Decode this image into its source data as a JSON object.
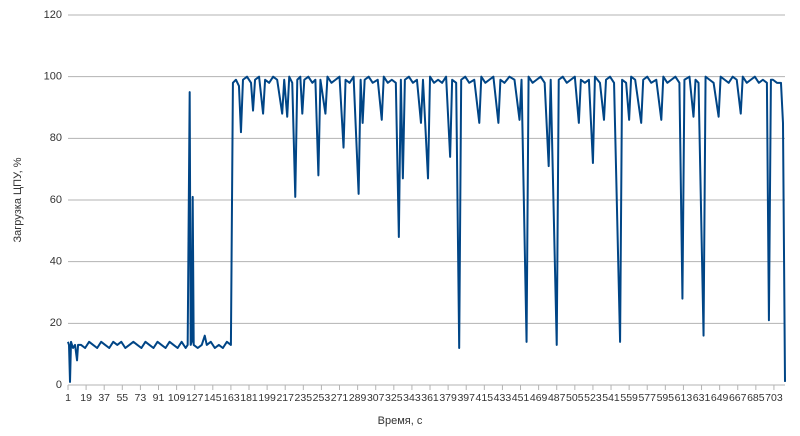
{
  "chart_data": {
    "type": "line",
    "xlabel": "Время, с",
    "ylabel": "Загрузка ЦПУ, %",
    "grid": true,
    "xlim": [
      1,
      714
    ],
    "ylim": [
      0,
      120
    ],
    "yticks": [
      0,
      20,
      40,
      60,
      80,
      100,
      120
    ],
    "xticks": [
      1,
      19,
      37,
      55,
      73,
      91,
      109,
      127,
      145,
      163,
      181,
      199,
      217,
      235,
      253,
      271,
      289,
      307,
      325,
      343,
      361,
      379,
      397,
      415,
      433,
      451,
      469,
      487,
      505,
      523,
      541,
      559,
      577,
      595,
      613,
      631,
      649,
      667,
      685,
      703
    ],
    "series": [
      {
        "color": "#004586",
        "x": [
          1,
          2,
          3,
          4,
          6,
          8,
          10,
          11,
          14,
          18,
          22,
          26,
          30,
          34,
          38,
          42,
          46,
          50,
          54,
          58,
          62,
          66,
          70,
          74,
          78,
          82,
          86,
          90,
          94,
          98,
          102,
          106,
          110,
          114,
          118,
          120,
          122,
          123,
          124,
          125,
          126,
          130,
          134,
          137,
          139,
          143,
          147,
          151,
          155,
          159,
          163,
          165,
          168,
          171,
          173,
          175,
          179,
          183,
          185,
          187,
          191,
          195,
          197,
          201,
          205,
          209,
          214,
          216,
          219,
          221,
          224,
          227,
          229,
          232,
          234,
          236,
          240,
          244,
          247,
          250,
          252,
          257,
          259,
          263,
          267,
          271,
          275,
          277,
          281,
          285,
          290,
          292,
          294,
          296,
          300,
          304,
          309,
          313,
          315,
          319,
          323,
          327,
          330,
          332,
          334,
          336,
          340,
          344,
          348,
          352,
          354,
          359,
          361,
          365,
          369,
          373,
          377,
          381,
          383,
          387,
          390,
          392,
          396,
          400,
          405,
          410,
          412,
          416,
          420,
          424,
          429,
          431,
          435,
          440,
          445,
          450,
          452,
          457,
          459,
          463,
          467,
          471,
          475,
          479,
          481,
          487,
          489,
          493,
          497,
          501,
          505,
          509,
          511,
          515,
          519,
          523,
          525,
          530,
          534,
          536,
          540,
          544,
          550,
          552,
          556,
          559,
          561,
          565,
          571,
          573,
          577,
          581,
          586,
          591,
          593,
          597,
          601,
          605,
          609,
          612,
          614,
          619,
          623,
          625,
          628,
          633,
          635,
          639,
          643,
          648,
          650,
          654,
          658,
          662,
          666,
          670,
          672,
          676,
          680,
          684,
          688,
          692,
          696,
          698,
          700,
          702,
          706,
          710,
          712,
          714
        ],
        "values": [
          14,
          13,
          1,
          14,
          12,
          13,
          8,
          13,
          13,
          12,
          14,
          13,
          12,
          14,
          13,
          12,
          14,
          13,
          14,
          12,
          13,
          14,
          13,
          12,
          14,
          13,
          12,
          14,
          13,
          12,
          14,
          13,
          12,
          14,
          12,
          13,
          95,
          13,
          14,
          61,
          13,
          12,
          13,
          16,
          13,
          14,
          12,
          13,
          12,
          14,
          13,
          98,
          99,
          97,
          82,
          99,
          100,
          98,
          89,
          99,
          100,
          88,
          99,
          98,
          100,
          99,
          88,
          99,
          87,
          100,
          98,
          61,
          99,
          100,
          88,
          99,
          100,
          98,
          99,
          68,
          99,
          88,
          100,
          98,
          99,
          100,
          77,
          99,
          98,
          100,
          62,
          99,
          85,
          99,
          100,
          98,
          99,
          86,
          100,
          98,
          99,
          98,
          48,
          99,
          67,
          99,
          100,
          98,
          99,
          85,
          99,
          67,
          100,
          98,
          99,
          98,
          100,
          74,
          99,
          98,
          12,
          99,
          100,
          98,
          99,
          85,
          100,
          98,
          99,
          100,
          85,
          99,
          98,
          100,
          99,
          86,
          99,
          14,
          100,
          98,
          99,
          100,
          98,
          71,
          99,
          13,
          99,
          100,
          98,
          99,
          100,
          85,
          99,
          98,
          99,
          72,
          100,
          98,
          86,
          99,
          100,
          98,
          14,
          99,
          98,
          86,
          100,
          99,
          85,
          99,
          100,
          98,
          99,
          86,
          100,
          98,
          99,
          100,
          98,
          28,
          99,
          100,
          87,
          99,
          98,
          16,
          100,
          99,
          98,
          87,
          100,
          99,
          98,
          100,
          99,
          88,
          100,
          98,
          99,
          100,
          98,
          99,
          98,
          21,
          99,
          99,
          98,
          98,
          85,
          1
        ]
      }
    ]
  }
}
